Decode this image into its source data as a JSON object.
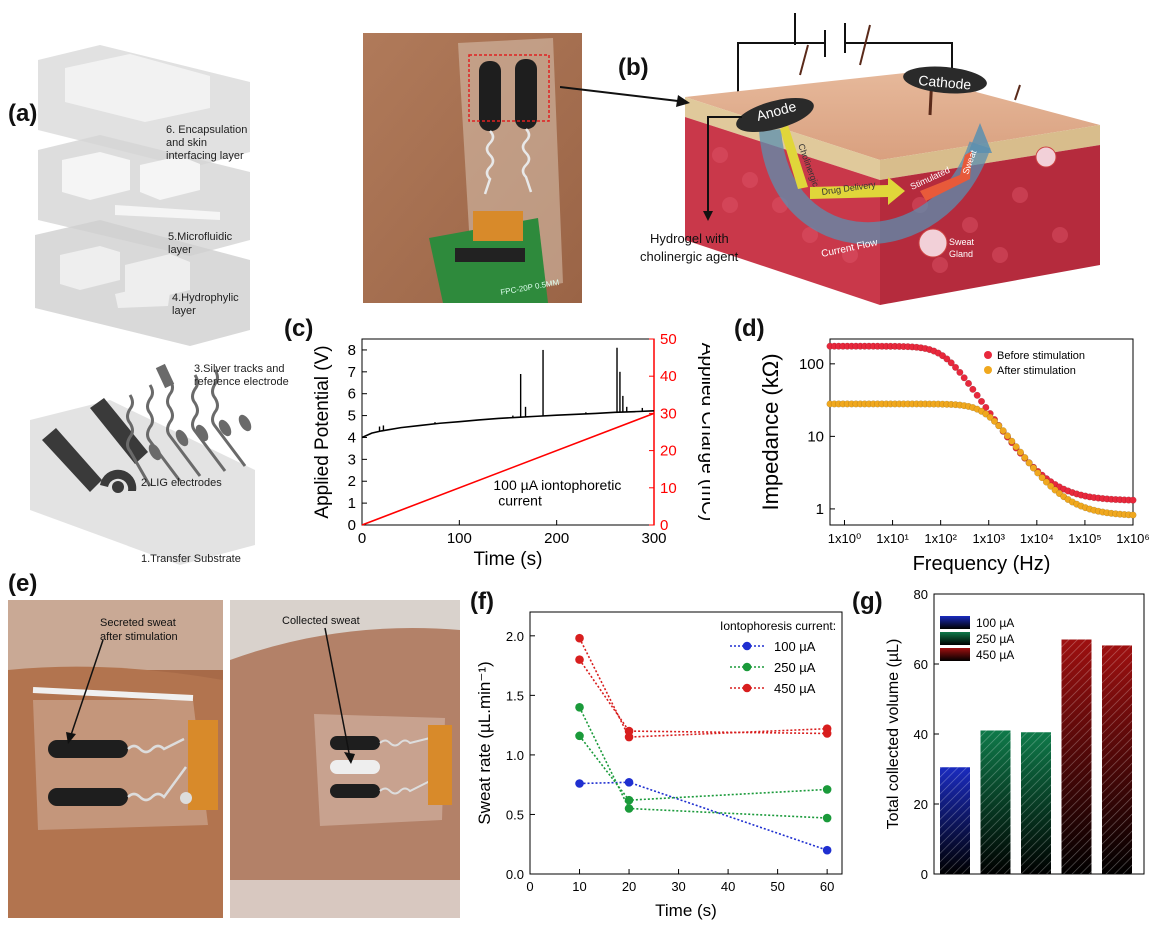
{
  "panels": {
    "a": "(a)",
    "b": "(b)",
    "c": "(c)",
    "d": "(d)",
    "e": "(e)",
    "f": "(f)",
    "g": "(g)"
  },
  "panel_a": {
    "layers": [
      {
        "label": "6. Encapsulation\nand skin\ninterfacing layer"
      },
      {
        "label": "5.Microfluidic\nlayer"
      },
      {
        "label": "4.Hydrophylic\nlayer"
      },
      {
        "label": "3.Silver tracks and\nreference electrode"
      },
      {
        "label": "2.LIG electrodes"
      },
      {
        "label": "1.Transfer Substrate"
      }
    ]
  },
  "panel_photo_top": {
    "board_text": "FPC-20P 0.5MM"
  },
  "panel_b": {
    "anode": "Anode",
    "cathode": "Cathode",
    "cholinergic": "Cholinergic",
    "drug_delivery": "Drug Delivery",
    "stimulated": "Stimulated",
    "sweat": "Sweat",
    "current_flow": "Current Flow",
    "sweat_gland": "Sweat\nGland",
    "hydrogel_label_1": "Hydrogel with",
    "hydrogel_label_2": "cholinergic agent"
  },
  "panel_e": {
    "secreted_1": "Secreted sweat",
    "secreted_2": "after stimulation",
    "collected": "Collected sweat"
  },
  "chart_data": [
    {
      "id": "c",
      "type": "line",
      "xlabel": "Time (s)",
      "ylabel": "Applied Potential (V)",
      "y2label": "Applied Charge (mC)",
      "xlim": [
        0,
        300
      ],
      "ylim": [
        0,
        8.5
      ],
      "y2lim": [
        0,
        50
      ],
      "xticks": [
        0,
        100,
        200,
        300
      ],
      "yticks": [
        0,
        1,
        2,
        3,
        4,
        5,
        6,
        7,
        8
      ],
      "y2ticks": [
        0,
        10,
        20,
        30,
        40,
        50
      ],
      "annotation_1": "100 µA iontophoretic",
      "annotation_2": "current",
      "series": [
        {
          "color": "#000000",
          "x": [
            0,
            10,
            20,
            40,
            60,
            80,
            100,
            120,
            140,
            160,
            180,
            200,
            220,
            240,
            260,
            280,
            300
          ],
          "y": [
            4.0,
            4.2,
            4.3,
            4.45,
            4.55,
            4.65,
            4.72,
            4.8,
            4.87,
            4.92,
            4.97,
            5.02,
            5.06,
            5.1,
            5.15,
            5.18,
            5.22
          ],
          "spikes": [
            [
              18,
              4.5
            ],
            [
              22,
              4.55
            ],
            [
              75,
              4.7
            ],
            [
              155,
              5.0
            ],
            [
              163,
              6.9
            ],
            [
              168,
              5.4
            ],
            [
              186,
              8.0
            ],
            [
              230,
              5.15
            ],
            [
              262,
              8.1
            ],
            [
              265,
              7.0
            ],
            [
              268,
              5.9
            ],
            [
              272,
              5.4
            ],
            [
              288,
              5.35
            ]
          ]
        },
        {
          "color": "#ff0000",
          "axis": "right",
          "x": [
            0,
            300
          ],
          "y": [
            0,
            30
          ]
        }
      ]
    },
    {
      "id": "d",
      "type": "scatter",
      "xlabel": "Frequency (Hz)",
      "ylabel": "Impedance (kΩ)",
      "xscale": "log",
      "yscale": "log",
      "xlim": [
        0.5,
        1000000
      ],
      "ylim": [
        0.6,
        220
      ],
      "xticks": [
        "1x10⁰",
        "1x10¹",
        "1x10²",
        "1x10³",
        "1x10⁴",
        "1x10⁵",
        "1x10⁶"
      ],
      "yticks": [
        "1",
        "10",
        "100"
      ],
      "legend_position": "top-right",
      "series": [
        {
          "name": "Before stimulation",
          "color": "#e8283c",
          "plateau": 175,
          "corner_hz": 120,
          "floor": 1.3
        },
        {
          "name": "After stimulation",
          "color": "#f0a81e",
          "plateau": 28,
          "corner_hz": 900,
          "floor": 0.8
        }
      ]
    },
    {
      "id": "f",
      "type": "scatter",
      "xlabel": "Time (s)",
      "ylabel": "Sweat rate (µL.min⁻¹)",
      "xlim": [
        0,
        63
      ],
      "ylim": [
        0,
        2.2
      ],
      "xticks": [
        0,
        10,
        20,
        30,
        40,
        50,
        60
      ],
      "yticks": [
        0.0,
        0.5,
        1.0,
        1.5,
        2.0
      ],
      "legend_title": "Iontophoresis current:",
      "legend_position": "top-right",
      "series": [
        {
          "name": "100 µA",
          "color": "#1f2fd0",
          "runs": [
            [
              [
                10,
                0.76
              ],
              [
                20,
                0.77
              ],
              [
                60,
                0.2
              ]
            ]
          ]
        },
        {
          "name": "250 µA",
          "color": "#1a9a3a",
          "runs": [
            [
              [
                10,
                1.4
              ],
              [
                20,
                0.55
              ],
              [
                60,
                0.47
              ]
            ],
            [
              [
                10,
                1.16
              ],
              [
                20,
                0.62
              ],
              [
                60,
                0.71
              ]
            ]
          ]
        },
        {
          "name": "450 µA",
          "color": "#d81e1e",
          "runs": [
            [
              [
                10,
                1.98
              ],
              [
                20,
                1.15
              ],
              [
                60,
                1.22
              ]
            ],
            [
              [
                10,
                1.8
              ],
              [
                20,
                1.2
              ],
              [
                60,
                1.18
              ]
            ]
          ]
        }
      ]
    },
    {
      "id": "g",
      "type": "bar",
      "ylabel": "Total collected volume (µL)",
      "ylim": [
        0,
        80
      ],
      "yticks": [
        0,
        20,
        40,
        60,
        80
      ],
      "legend_position": "top-left",
      "series": [
        {
          "name": "100 µA",
          "color": "#1a2bbf",
          "values": [
            30.5
          ]
        },
        {
          "name": "250 µA",
          "color": "#0f7a4a",
          "values": [
            41,
            40.5
          ]
        },
        {
          "name": "450 µA",
          "color": "#9e1010",
          "values": [
            67,
            65.3
          ]
        }
      ]
    }
  ]
}
